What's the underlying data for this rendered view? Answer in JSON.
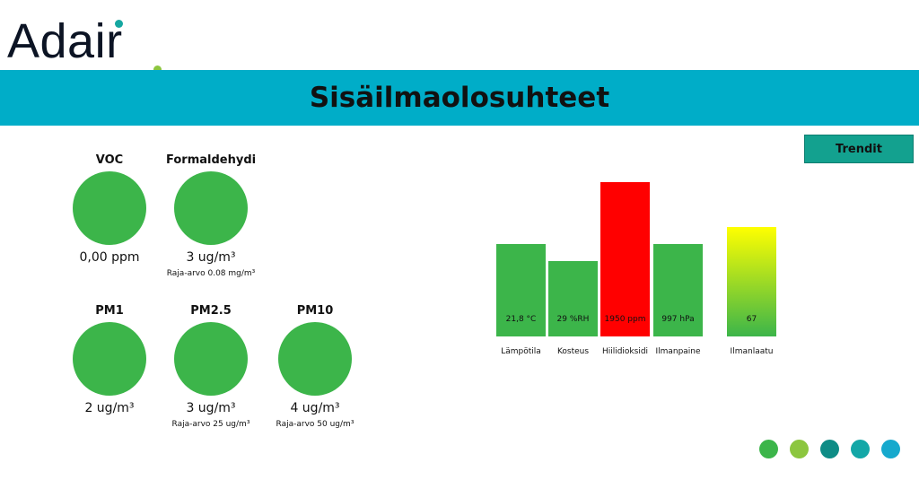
{
  "logo": {
    "text": "Adair",
    "brand_color": "#0c1424",
    "accent_dot": "#15a7a1",
    "accent_period": "#8cc63f"
  },
  "banner": {
    "title": "Sisäilmaolosuhteet",
    "color": "#00adc8"
  },
  "trend_button": {
    "label": "Trendit",
    "color": "#13a18f"
  },
  "gauges": [
    {
      "title": "VOC",
      "value": "0,00 ppm",
      "limit": "",
      "color": "#3cb54a"
    },
    {
      "title": "Formaldehydi",
      "value": "3 ug/m³",
      "limit": "Raja-arvo 0.08 mg/m³",
      "color": "#3cb54a"
    },
    {
      "title": "PM1",
      "value": "2 ug/m³",
      "limit": "",
      "color": "#3cb54a"
    },
    {
      "title": "PM2.5",
      "value": "3 ug/m³",
      "limit": "Raja-arvo 25 ug/m³",
      "color": "#3cb54a"
    },
    {
      "title": "PM10",
      "value": "4 ug/m³",
      "limit": "Raja-arvo 50 ug/m³",
      "color": "#3cb54a"
    }
  ],
  "chart_data": {
    "type": "bar",
    "categories": [
      "Lämpötila",
      "Kosteus",
      "Hiilidioksidi",
      "Ilmanpaine",
      "Ilmanlaatu"
    ],
    "value_labels": [
      "21,8 °C",
      "29 %RH",
      "1950 ppm",
      "997 hPa",
      "67"
    ],
    "levels": [
      0.6,
      0.49,
      1.0,
      0.6,
      0.71
    ],
    "colors": [
      "#3cb54a",
      "#3cb54a",
      "#ff0000",
      "#3cb54a",
      "gradient-yellow-green"
    ],
    "gradient": [
      "#ffff00",
      "#3cb54a"
    ]
  },
  "status_dots": [
    "#3cb54a",
    "#8cc63f",
    "#0e8c86",
    "#13a7a7",
    "#16a9cd"
  ]
}
